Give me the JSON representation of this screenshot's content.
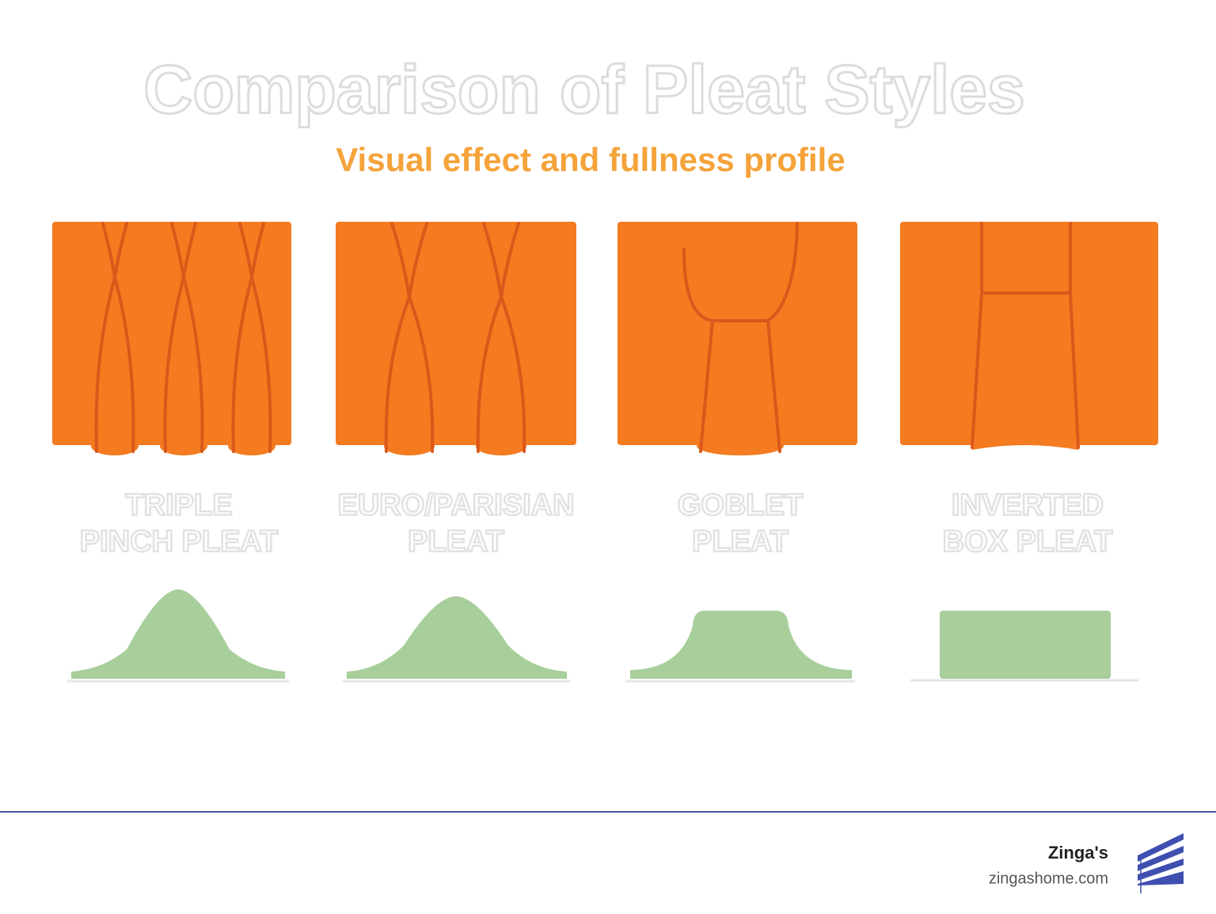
{
  "header": {
    "title": "Comparison of Pleat Styles",
    "subtitle": "Visual effect and fullness profile"
  },
  "panels": [
    {
      "lines": [
        "TRIPLE",
        "PINCH PLEAT"
      ]
    },
    {
      "lines": [
        "EURO/PARISIAN",
        "PLEAT"
      ]
    },
    {
      "lines": [
        "GOBLET",
        "PLEAT"
      ]
    },
    {
      "lines": [
        "INVERTED",
        "BOX PLEAT"
      ]
    }
  ],
  "footer": {
    "brand": "Zinga's",
    "url": "zingashome.com"
  }
}
